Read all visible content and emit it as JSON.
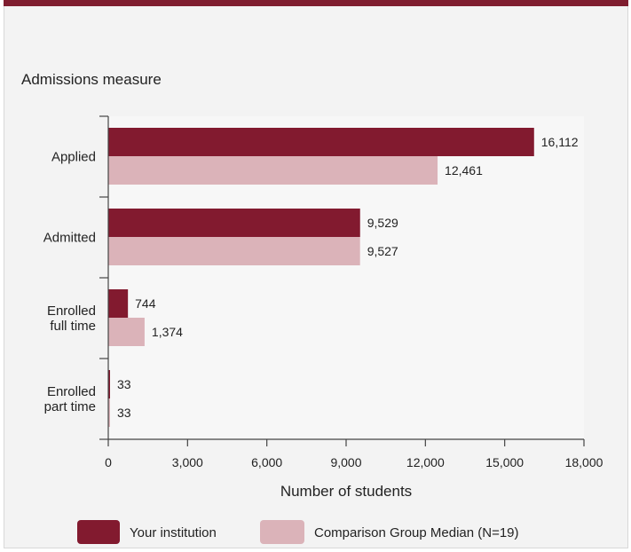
{
  "chart_data": {
    "type": "bar",
    "orientation": "horizontal",
    "title": "Admissions measure",
    "xlabel": "Number of students",
    "categories": [
      [
        "Applied"
      ],
      [
        "Admitted"
      ],
      [
        "Enrolled",
        "full time"
      ],
      [
        "Enrolled",
        "part time"
      ]
    ],
    "series": [
      {
        "name": "Your institution",
        "color": "#821a2f",
        "values": [
          16112,
          9529,
          744,
          33
        ],
        "labels": [
          "16,112",
          "9,529",
          "744",
          "33"
        ]
      },
      {
        "name": "Comparison Group Median (N=19)",
        "color": "#dbb3b9",
        "values": [
          12461,
          9527,
          1374,
          33
        ],
        "labels": [
          "12,461",
          "9,527",
          "1,374",
          "33"
        ]
      }
    ],
    "xlim": [
      0,
      18000
    ],
    "xticks": [
      0,
      3000,
      6000,
      9000,
      12000,
      15000,
      18000
    ],
    "xtick_labels": [
      "0",
      "3,000",
      "6,000",
      "9,000",
      "12,000",
      "15,000",
      "18,000"
    ],
    "grid": false,
    "legend_position": "bottom"
  }
}
